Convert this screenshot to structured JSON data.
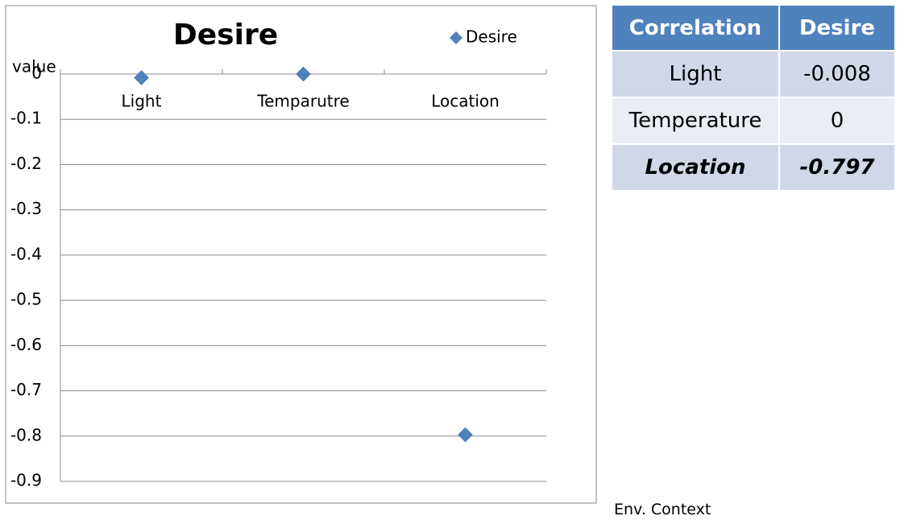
{
  "chart_data": {
    "type": "scatter",
    "title": "Desire",
    "y_label": "value",
    "categories": [
      "Light",
      "Temparutre",
      "Location"
    ],
    "series": [
      {
        "name": "Desire",
        "color": "#4f81bd",
        "values": [
          -0.008,
          0,
          -0.797
        ]
      }
    ],
    "ylim": [
      -0.9,
      0
    ],
    "yticks": [
      0,
      -0.1,
      -0.2,
      -0.3,
      -0.4,
      -0.5,
      -0.6,
      -0.7,
      -0.8,
      -0.9
    ],
    "grid": true,
    "legend": "top-right"
  },
  "table": {
    "header": [
      "Correlation",
      "Desire"
    ],
    "rows": [
      [
        "Light",
        "-0.008"
      ],
      [
        "Temperature",
        "0"
      ],
      [
        "Location",
        "-0.797"
      ]
    ]
  },
  "caption": "Env. Context"
}
